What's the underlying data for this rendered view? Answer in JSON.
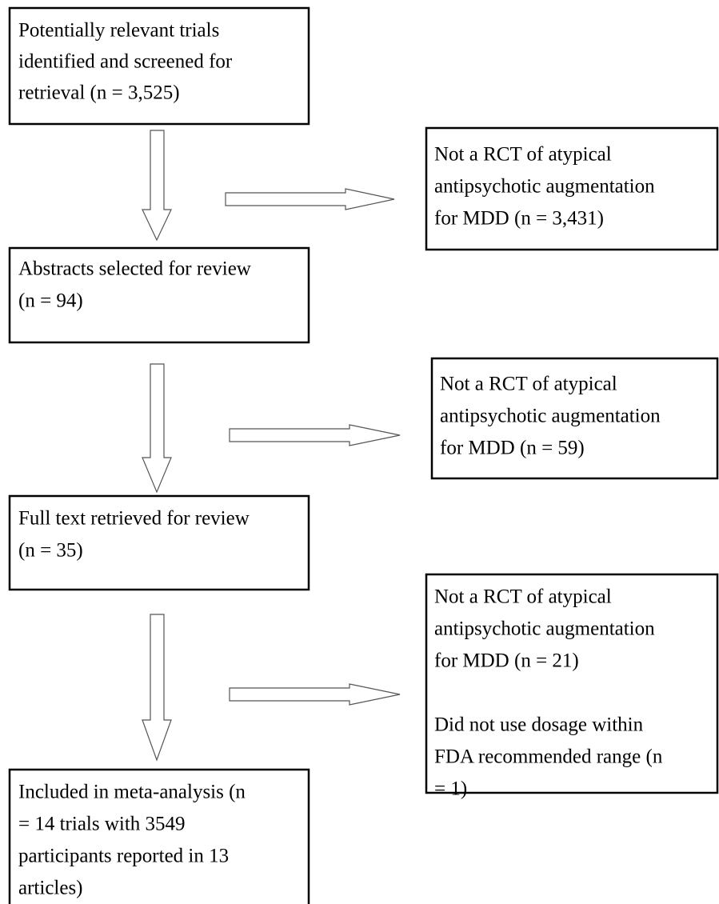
{
  "nodes": [
    {
      "lines": [
        "Potentially relevant trials",
        "identified and screened for",
        "retrieval (n = 3,525)"
      ]
    },
    {
      "lines": [
        "Not a RCT of atypical",
        "antipsychotic augmentation",
        "for MDD (n = 3,431)"
      ]
    },
    {
      "lines": [
        "Abstracts selected for review",
        "(n = 94)"
      ]
    },
    {
      "lines": [
        "Not a RCT of atypical",
        "antipsychotic augmentation",
        "for MDD (n = 59)"
      ]
    },
    {
      "lines": [
        "Full text retrieved for review",
        "(n = 35)"
      ]
    },
    {
      "lines": [
        "Not a RCT of atypical",
        "antipsychotic augmentation",
        "for MDD (n = 21)",
        "Did not use dosage within",
        "FDA recommended range (n",
        "= 1)"
      ]
    },
    {
      "lines": [
        "Included in meta-analysis (n",
        "= 14 trials with 3549",
        "participants reported in 13",
        "articles)"
      ]
    }
  ]
}
